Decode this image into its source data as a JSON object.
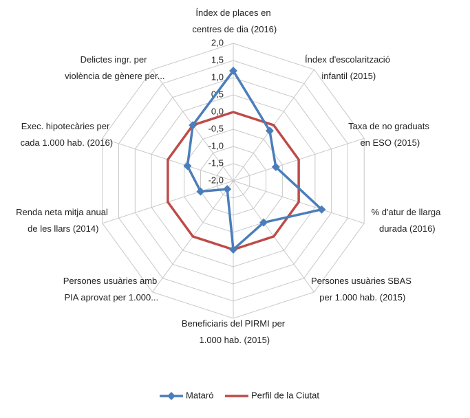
{
  "chart_data": {
    "type": "radar",
    "categories": [
      "Índex de places en centres de dia (2016)",
      "Índex d'escolarització infantil (2015)",
      "Taxa de no graduats en ESO (2015)",
      "% d'atur de llarga durada (2016)",
      "Persones usuàries SBAS per 1.000 hab. (2015)",
      "Beneficiaris del PIRMI per 1.000 hab. (2015)",
      "Persones usuàries amb PIA aprovat per 1.000...",
      "Renda neta mitja anual de les llars (2014)",
      "Exec. hipotecàries per cada 1.000 hab. (2016)",
      "Delictes ingr. per violència de gènere per..."
    ],
    "series": [
      {
        "name": "Mataró",
        "color": "#4a7ebb",
        "values": [
          1.2,
          -0.2,
          -0.7,
          0.7,
          -0.5,
          0.0,
          -1.7,
          -1.0,
          -0.6,
          0.0
        ]
      },
      {
        "name": "Perfil de la Ciutat",
        "color": "#be4b48",
        "values": [
          0,
          0,
          0,
          0,
          0,
          0,
          0,
          0,
          0,
          0
        ]
      }
    ],
    "ylim": [
      -2,
      2
    ],
    "yticks": [
      {
        "value": -2,
        "label": "-2,0"
      },
      {
        "value": -1.5,
        "label": "-1,5"
      },
      {
        "value": -1,
        "label": "-1,0"
      },
      {
        "value": -0.5,
        "label": "-0,5"
      },
      {
        "value": 0,
        "label": "0,0"
      },
      {
        "value": 0.5,
        "label": "0,5"
      },
      {
        "value": 1,
        "label": "1,0"
      },
      {
        "value": 1.5,
        "label": "1,5"
      },
      {
        "value": 2,
        "label": "2,0"
      }
    ],
    "grid": true,
    "legend": "bottom"
  }
}
